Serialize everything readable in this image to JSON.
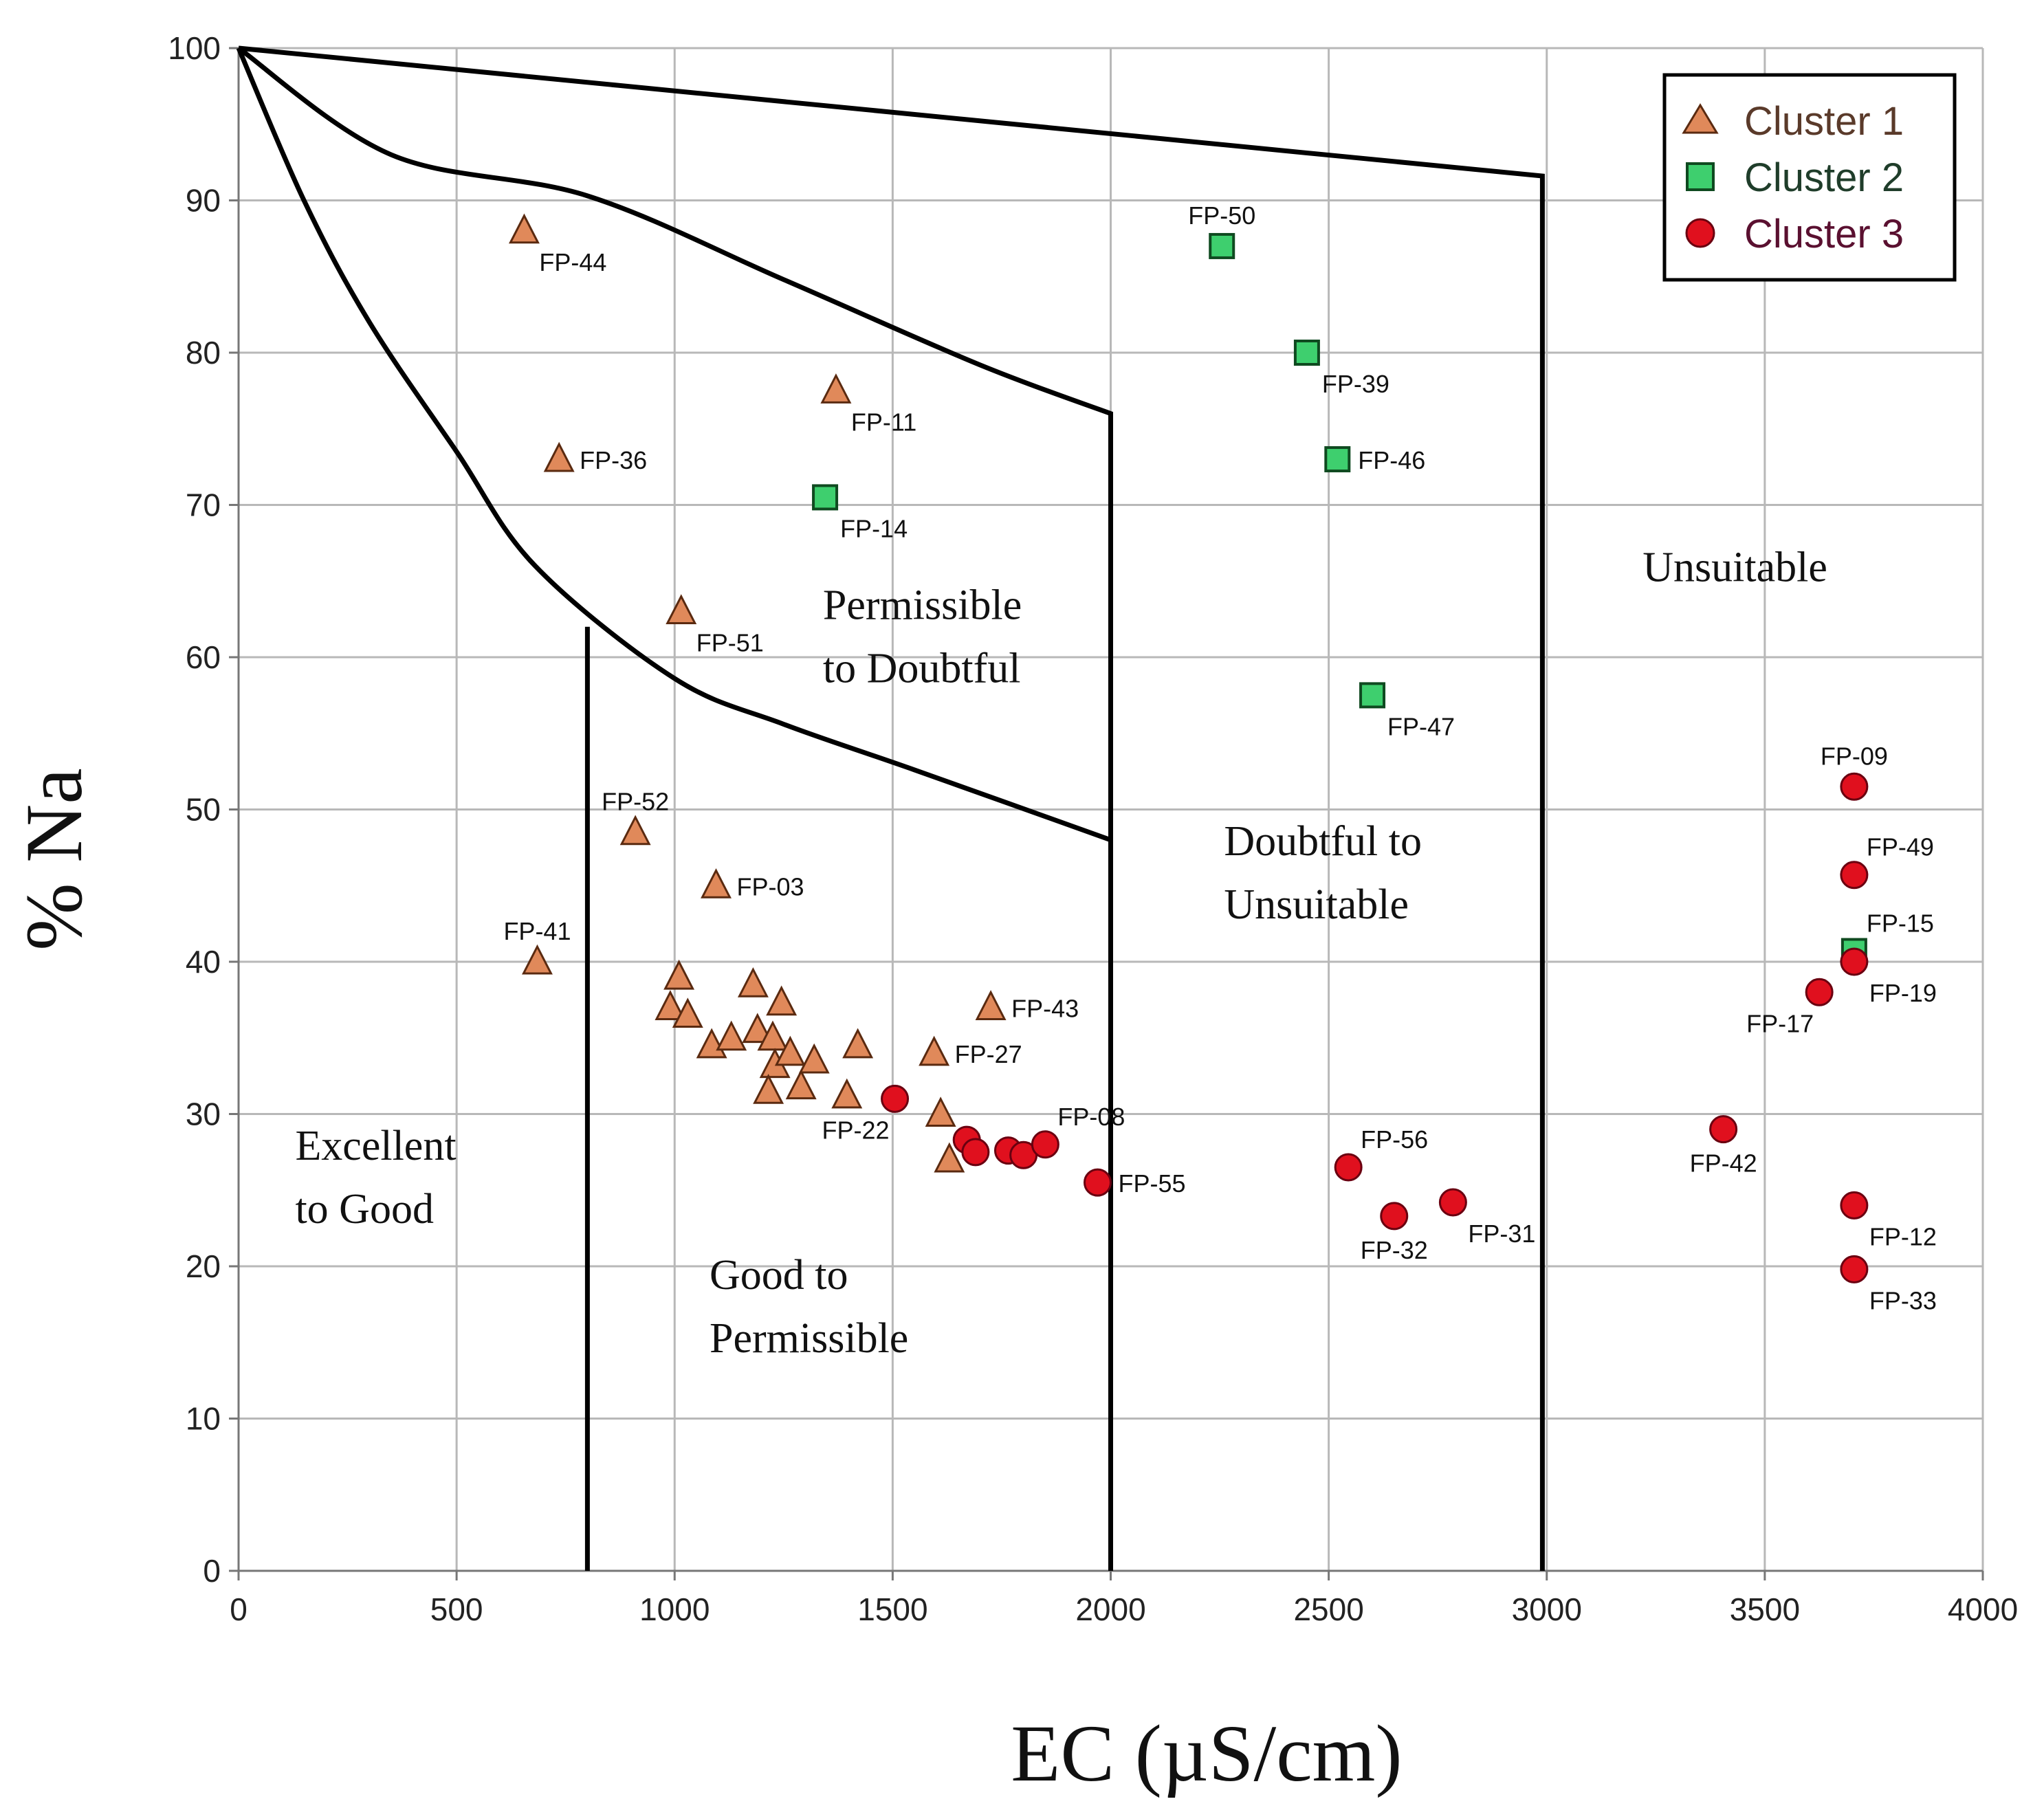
{
  "chart_data": {
    "type": "scatter",
    "title": "",
    "xlabel": "EC (µS/cm)",
    "ylabel": "% Na",
    "xlim": [
      0,
      4000
    ],
    "ylim": [
      0,
      100
    ],
    "xticks": [
      "0",
      "500",
      "1000",
      "1500",
      "2000",
      "2500",
      "3000",
      "3500",
      "4000"
    ],
    "yticks": [
      "0",
      "10",
      "20",
      "30",
      "40",
      "50",
      "60",
      "70",
      "80",
      "90",
      "100"
    ],
    "grid": true,
    "legend_position": "top-right",
    "colors": {
      "cluster1": "#e0895a",
      "cluster2": "#3ecf6e",
      "cluster3": "#e0101e"
    },
    "series": [
      {
        "name": "Cluster 1",
        "marker": "triangle",
        "points": [
          {
            "x": 655,
            "y": 88,
            "label": "FP-44",
            "label_pos": "below-right"
          },
          {
            "x": 735,
            "y": 73,
            "label": "FP-36",
            "label_pos": "right"
          },
          {
            "x": 1370,
            "y": 77.5,
            "label": "FP-11",
            "label_pos": "below-right"
          },
          {
            "x": 1015,
            "y": 63,
            "label": "FP-51",
            "label_pos": "below-right"
          },
          {
            "x": 910,
            "y": 48.5,
            "label": "FP-52",
            "label_pos": "above"
          },
          {
            "x": 1095,
            "y": 45,
            "label": "FP-03",
            "label_pos": "right"
          },
          {
            "x": 685,
            "y": 40,
            "label": "FP-41",
            "label_pos": "above"
          },
          {
            "x": 1725,
            "y": 37,
            "label": "FP-43",
            "label_pos": "right"
          },
          {
            "x": 1595,
            "y": 34,
            "label": "FP-27",
            "label_pos": "right"
          },
          {
            "x": 1010,
            "y": 39,
            "label": ""
          },
          {
            "x": 990,
            "y": 37,
            "label": ""
          },
          {
            "x": 1030,
            "y": 36.5,
            "label": ""
          },
          {
            "x": 1180,
            "y": 38.5,
            "label": ""
          },
          {
            "x": 1085,
            "y": 34.5,
            "label": ""
          },
          {
            "x": 1130,
            "y": 35,
            "label": ""
          },
          {
            "x": 1190,
            "y": 35.5,
            "label": ""
          },
          {
            "x": 1245,
            "y": 37.3,
            "label": ""
          },
          {
            "x": 1225,
            "y": 35,
            "label": ""
          },
          {
            "x": 1230,
            "y": 33.2,
            "label": ""
          },
          {
            "x": 1265,
            "y": 34,
            "label": ""
          },
          {
            "x": 1215,
            "y": 31.5,
            "label": ""
          },
          {
            "x": 1290,
            "y": 31.8,
            "label": ""
          },
          {
            "x": 1320,
            "y": 33.5,
            "label": ""
          },
          {
            "x": 1420,
            "y": 34.5,
            "label": ""
          },
          {
            "x": 1395,
            "y": 31.2,
            "label": ""
          },
          {
            "x": 1610,
            "y": 30,
            "label": ""
          },
          {
            "x": 1630,
            "y": 27,
            "label": ""
          }
        ]
      },
      {
        "name": "Cluster 2",
        "marker": "square",
        "points": [
          {
            "x": 2255,
            "y": 87,
            "label": "FP-50",
            "label_pos": "above"
          },
          {
            "x": 2450,
            "y": 80,
            "label": "FP-39",
            "label_pos": "below-right"
          },
          {
            "x": 2520,
            "y": 73,
            "label": "FP-46",
            "label_pos": "right"
          },
          {
            "x": 1345,
            "y": 70.5,
            "label": "FP-14",
            "label_pos": "below-right"
          },
          {
            "x": 2600,
            "y": 57.5,
            "label": "FP-47",
            "label_pos": "below-right"
          },
          {
            "x": 3705,
            "y": 40.7,
            "label": "FP-15",
            "label_pos": "above-right"
          }
        ]
      },
      {
        "name": "Cluster 3",
        "marker": "circle",
        "points": [
          {
            "x": 1505,
            "y": 31,
            "label": "FP-22",
            "label_pos": "below-left"
          },
          {
            "x": 1670,
            "y": 28.3,
            "label": ""
          },
          {
            "x": 1690,
            "y": 27.5,
            "label": ""
          },
          {
            "x": 1765,
            "y": 27.6,
            "label": ""
          },
          {
            "x": 1800,
            "y": 27.3,
            "label": ""
          },
          {
            "x": 1850,
            "y": 28,
            "label": "FP-08",
            "label_pos": "above-right"
          },
          {
            "x": 1970,
            "y": 25.5,
            "label": "FP-55",
            "label_pos": "right"
          },
          {
            "x": 2545,
            "y": 26.5,
            "label": "FP-56",
            "label_pos": "above-right"
          },
          {
            "x": 2650,
            "y": 23.3,
            "label": "FP-32",
            "label_pos": "below"
          },
          {
            "x": 2785,
            "y": 24.2,
            "label": "FP-31",
            "label_pos": "below-right"
          },
          {
            "x": 3405,
            "y": 29,
            "label": "FP-42",
            "label_pos": "below"
          },
          {
            "x": 3705,
            "y": 51.5,
            "label": "FP-09",
            "label_pos": "above"
          },
          {
            "x": 3705,
            "y": 45.7,
            "label": "FP-49",
            "label_pos": "above-right"
          },
          {
            "x": 3705,
            "y": 40,
            "label": "FP-19",
            "label_pos": "below-right"
          },
          {
            "x": 3625,
            "y": 38,
            "label": "FP-17",
            "label_pos": "below-left"
          },
          {
            "x": 3705,
            "y": 24,
            "label": "FP-12",
            "label_pos": "below-right"
          },
          {
            "x": 3705,
            "y": 19.8,
            "label": "FP-33",
            "label_pos": "below-right"
          }
        ]
      }
    ],
    "boundaries": [
      {
        "name": "unsuitable-boundary",
        "points": [
          [
            0,
            100
          ],
          [
            2990,
            91.6
          ],
          [
            2990,
            0
          ]
        ]
      },
      {
        "name": "doubtful-boundary",
        "points": [
          [
            0,
            100
          ],
          [
            350,
            93
          ],
          [
            800,
            90.3
          ],
          [
            1250,
            84.8
          ],
          [
            1700,
            79.2
          ],
          [
            2000,
            76
          ],
          [
            2000,
            0
          ]
        ]
      },
      {
        "name": "permissible-boundary",
        "points": [
          [
            0,
            100
          ],
          [
            150,
            90
          ],
          [
            300,
            82
          ],
          [
            500,
            73.5
          ],
          [
            680,
            66
          ],
          [
            1000,
            58.6
          ],
          [
            1250,
            55.6
          ],
          [
            1550,
            52.6
          ],
          [
            2000,
            48
          ]
        ]
      },
      {
        "name": "good-boundary",
        "points": [
          [
            800,
            62
          ],
          [
            800,
            0
          ]
        ]
      }
    ],
    "regions": [
      {
        "lines": [
          "Excellent",
          "to Good"
        ]
      },
      {
        "lines": [
          "Good to",
          "Permissible"
        ]
      },
      {
        "lines": [
          "Permissible",
          "to Doubtful"
        ]
      },
      {
        "lines": [
          "Doubtful to",
          "Unsuitable"
        ]
      },
      {
        "lines": [
          "Unsuitable"
        ]
      }
    ]
  }
}
